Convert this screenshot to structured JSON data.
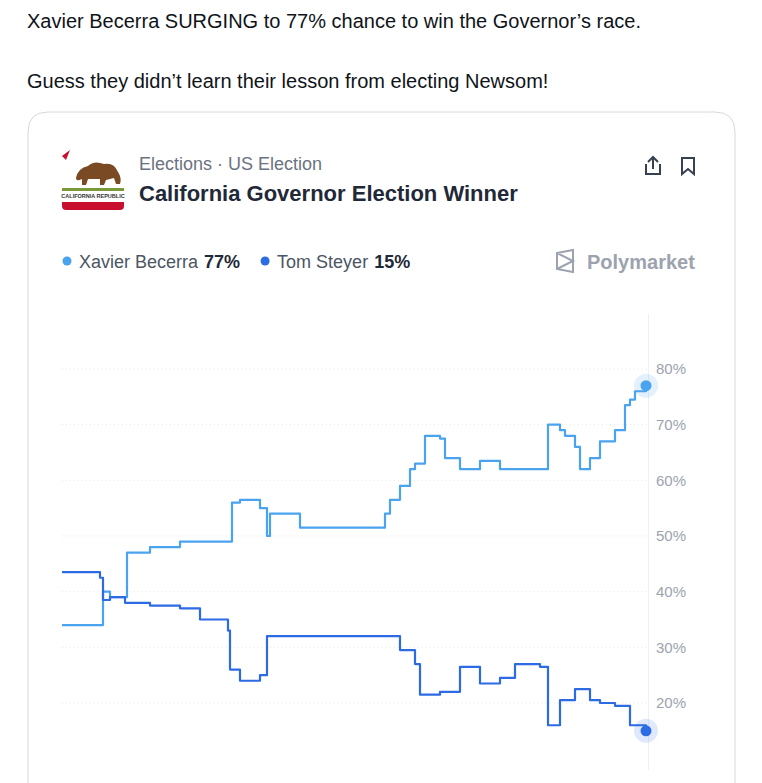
{
  "post": {
    "text": [
      "Xavier Becerra SURGING to 77% chance to win the Governor’s race.",
      "Guess they didn’t learn their lesson from electing Newsom!"
    ]
  },
  "card": {
    "logo_text": "CALIFORNIA REPUBLIC",
    "brand": "Polymarket"
  },
  "chart_data": {
    "type": "line",
    "subtitle": "Elections · US Election",
    "title": "California Governor Election Winner",
    "x": [
      0,
      38,
      41,
      48,
      63,
      65,
      88,
      118,
      138,
      166,
      168,
      170,
      178,
      198,
      205,
      208,
      238,
      308,
      318,
      323,
      328,
      338,
      348,
      353,
      358,
      363,
      378,
      383,
      398,
      418,
      438,
      453,
      478,
      486,
      498,
      503,
      513,
      518,
      528,
      538,
      553,
      563,
      568,
      573,
      584
    ],
    "xlim": [
      0,
      584
    ],
    "ylim": [
      8,
      90
    ],
    "yticks": [
      {
        "value": 20,
        "label": "20%"
      },
      {
        "value": 30,
        "label": "30%"
      },
      {
        "value": 40,
        "label": "40%"
      },
      {
        "value": 50,
        "label": "50%"
      },
      {
        "value": 60,
        "label": "60%"
      },
      {
        "value": 70,
        "label": "70%"
      },
      {
        "value": 80,
        "label": "80%"
      }
    ],
    "grid": true,
    "tick_labels": "y",
    "line_style": "step",
    "series": [
      {
        "name": "Xavier Becerra",
        "color": "#4aa3ef",
        "current_value": 77,
        "current_label": "77%",
        "values": [
          34,
          34,
          40,
          39,
          39,
          47,
          48,
          49,
          49,
          49,
          49,
          56,
          56.5,
          55,
          50,
          54,
          51.5,
          51.5,
          51.5,
          54,
          56.5,
          59,
          62,
          63,
          63,
          68,
          67.5,
          64,
          62,
          63.5,
          62,
          62,
          62,
          70,
          69,
          68,
          66,
          62,
          64,
          67,
          69,
          73.5,
          74.5,
          76,
          77
        ]
      },
      {
        "name": "Tom Steyer",
        "color": "#2d6be4",
        "current_value": 15,
        "current_label": "15%",
        "values": [
          43.5,
          42.5,
          38.5,
          39,
          38,
          38,
          37.5,
          37,
          35,
          33,
          26,
          26,
          24,
          25,
          32,
          32,
          32,
          32,
          32,
          32,
          32,
          29.5,
          29.5,
          27,
          21.5,
          21.5,
          22,
          22,
          26.5,
          23.5,
          24.5,
          27,
          26.5,
          16,
          20.5,
          20.5,
          22.5,
          22.5,
          20.5,
          20,
          19.5,
          19.5,
          16,
          16,
          15
        ]
      }
    ]
  }
}
